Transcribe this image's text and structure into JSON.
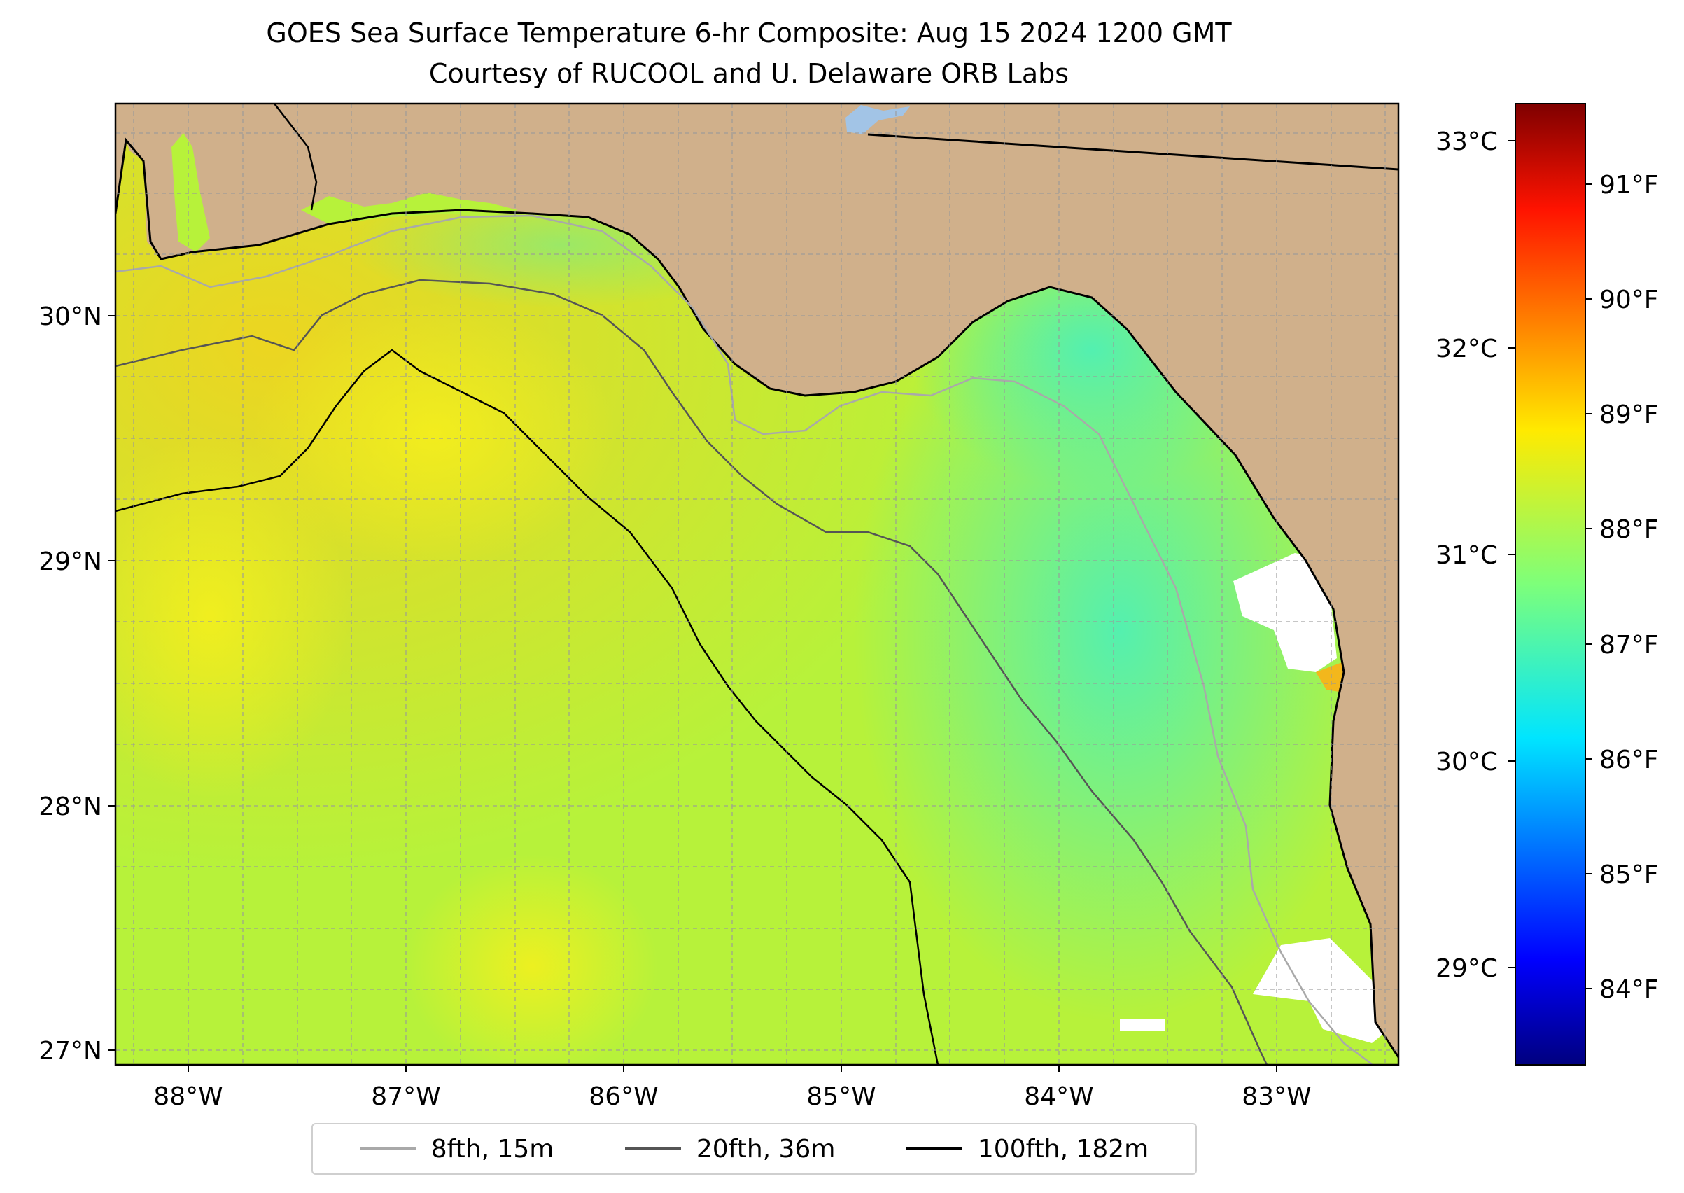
{
  "title": "GOES Sea Surface Temperature 6-hr Composite: Aug 15 2024 1200 GMT",
  "subtitle": "Courtesy of RUCOOL and U. Delaware ORB Labs",
  "lon_ticks": [
    "88°W",
    "87°W",
    "86°W",
    "85°W",
    "84°W",
    "83°W"
  ],
  "lat_ticks": [
    "30°N",
    "29°N",
    "28°N",
    "27°N"
  ],
  "colorbar": {
    "celsius_ticks": [
      "33°C",
      "32°C",
      "31°C",
      "30°C",
      "29°C"
    ],
    "fahrenheit_ticks": [
      "91°F",
      "90°F",
      "89°F",
      "88°F",
      "87°F",
      "86°F",
      "85°F",
      "84°F"
    ],
    "colormap": "jet",
    "range_celsius": [
      28.55,
      33.2
    ]
  },
  "legend": [
    {
      "label": "8fth, 15m",
      "color": "#a9a9a9"
    },
    {
      "label": "20fth, 36m",
      "color": "#555555"
    },
    {
      "label": "100fth, 182m",
      "color": "#000000"
    }
  ],
  "colors": {
    "land": "#d0b08b",
    "sea_warm": "#e6f51e",
    "sea_cool": "#5df0ae",
    "no_data": "#ffffff",
    "lake": "#a2c4e6"
  }
}
